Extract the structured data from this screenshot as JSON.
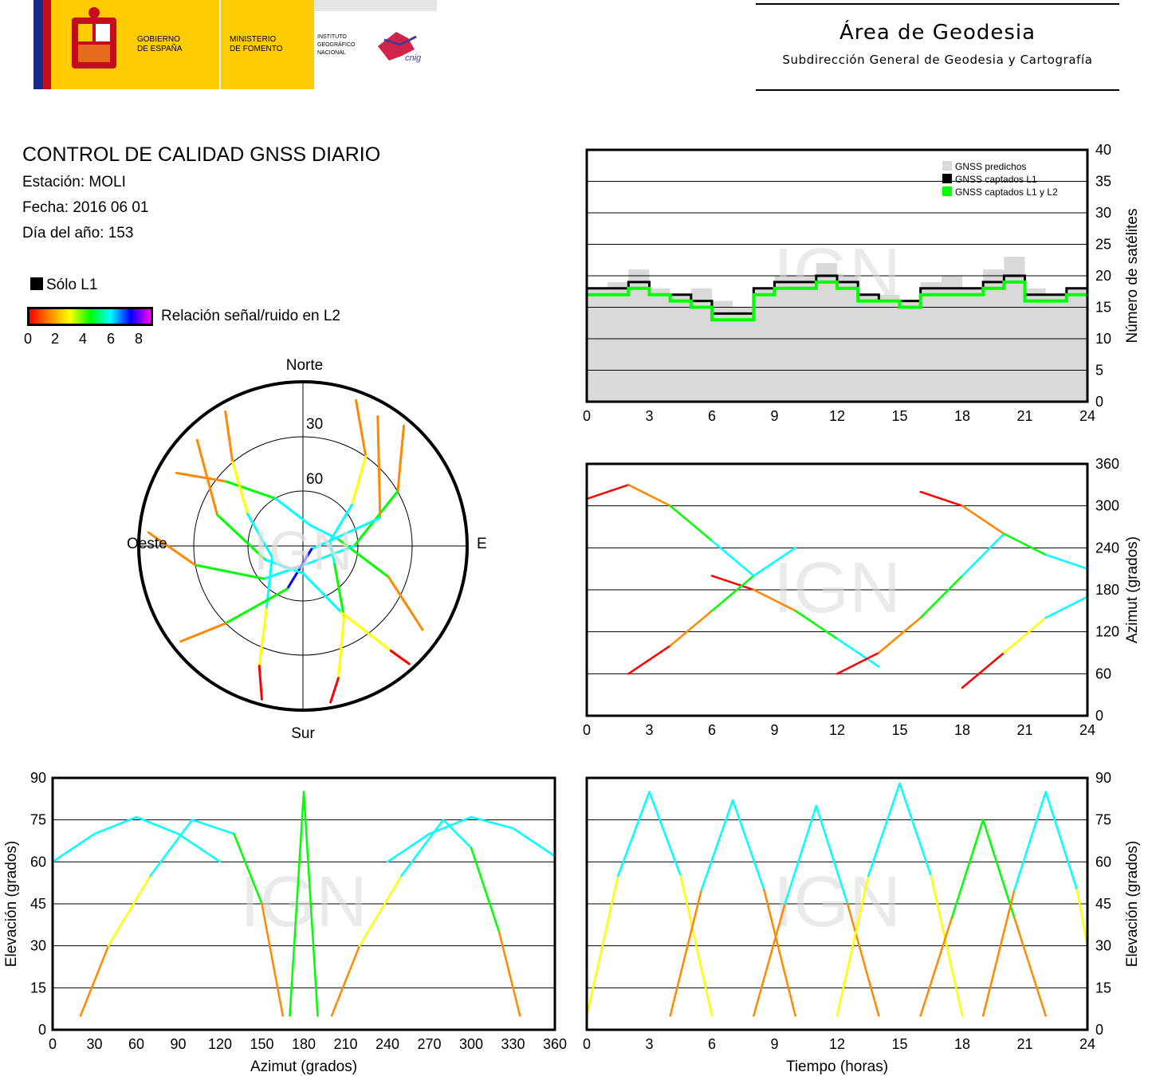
{
  "header": {
    "logo": {
      "gobierno": [
        "GOBIERNO",
        "DE ESPAÑA"
      ],
      "ministerio": [
        "MINISTERIO",
        "DE FOMENTO"
      ],
      "instituto": [
        "INSTITUTO",
        "GEOGRÁFICO",
        "NACIONAL"
      ],
      "cnig": "cnig"
    },
    "area_title": "Área de Geodesia",
    "area_subtitle": "Subdirección General de Geodesia y Cartografía"
  },
  "report": {
    "title": "CONTROL DE CALIDAD GNSS DIARIO",
    "station": "Estación: MOLI",
    "date": "Fecha: 2016 06 01",
    "doy": "Día del año: 153"
  },
  "legend": {
    "l1_only": "Sólo L1",
    "snr_label": "Relación señal/ruido en L2",
    "snr_ticks": [
      "0",
      "2",
      "4",
      "6",
      "8"
    ],
    "snr_colors": [
      "#ff0000",
      "#ff8800",
      "#ffff00",
      "#00ff00",
      "#00ffff",
      "#0000ff",
      "#ff00ff"
    ],
    "l1_color": "#000000"
  },
  "watermark": "IGN",
  "chart_data": [
    {
      "id": "skyplot",
      "type": "scatter",
      "title": "",
      "directions": {
        "north": "Norte",
        "south": "Sur",
        "east": "Este",
        "west": "Oeste"
      },
      "elevation_rings": [
        30,
        60
      ],
      "elevation_ring_labels": [
        "30",
        "60"
      ],
      "series": [
        {
          "values": [
            [
              20,
              5
            ],
            [
              35,
              30
            ],
            [
              50,
              55
            ],
            [
              80,
              75
            ],
            [
              120,
              70
            ],
            [
              150,
              45
            ],
            [
              165,
              15
            ],
            [
              170,
              3
            ]
          ]
        },
        {
          "values": [
            [
              300,
              10
            ],
            [
              310,
              35
            ],
            [
              330,
              60
            ],
            [
              20,
              78
            ],
            [
              80,
              70
            ],
            [
              110,
              40
            ],
            [
              125,
              10
            ]
          ]
        },
        {
          "values": [
            [
              40,
              4
            ],
            [
              60,
              30
            ],
            [
              90,
              62
            ],
            [
              160,
              80
            ],
            [
              230,
              62
            ],
            [
              260,
              30
            ],
            [
              275,
              5
            ]
          ]
        },
        {
          "values": [
            [
              330,
              5
            ],
            [
              320,
              30
            ],
            [
              300,
              55
            ],
            [
              250,
              72
            ],
            [
              210,
              50
            ],
            [
              200,
              20
            ],
            [
              195,
              3
            ]
          ]
        },
        {
          "values": [
            [
              30,
              8
            ],
            [
              70,
              45
            ],
            [
              110,
              85
            ],
            [
              200,
              65
            ],
            [
              225,
              30
            ],
            [
              232,
              5
            ]
          ]
        },
        {
          "values": [
            [
              315,
              8
            ],
            [
              290,
              40
            ],
            [
              250,
              68
            ],
            [
              180,
              75
            ],
            [
              150,
              48
            ],
            [
              140,
              15
            ],
            [
              138,
              3
            ]
          ]
        }
      ]
    },
    {
      "id": "satellite-count",
      "type": "area",
      "xlim": [
        0,
        24
      ],
      "ylim": [
        0,
        40
      ],
      "xticks": [
        "0",
        "3",
        "6",
        "9",
        "12",
        "15",
        "18",
        "21",
        "24"
      ],
      "yticks": [
        "0",
        "5",
        "10",
        "15",
        "20",
        "25",
        "30",
        "35",
        "40"
      ],
      "ylabel": "Número de satélites",
      "legend_position": "top-right",
      "x": [
        0,
        1,
        2,
        3,
        4,
        5,
        6,
        7,
        8,
        9,
        10,
        11,
        12,
        13,
        14,
        15,
        16,
        17,
        18,
        19,
        20,
        21,
        22,
        23,
        24
      ],
      "series": [
        {
          "name": "GNSS predichos",
          "color": "#d9d9d9",
          "values": [
            18,
            19,
            21,
            18,
            17,
            18,
            16,
            15,
            18,
            20,
            20,
            22,
            20,
            17,
            17,
            16,
            19,
            20,
            18,
            21,
            23,
            18,
            17,
            18,
            18
          ]
        },
        {
          "name": "GNSS captados L1",
          "color": "#000000",
          "values": [
            18,
            18,
            19,
            17,
            17,
            16,
            14,
            14,
            18,
            19,
            19,
            20,
            19,
            17,
            16,
            16,
            18,
            18,
            18,
            19,
            20,
            17,
            17,
            18,
            18
          ]
        },
        {
          "name": "GNSS captados L1 y L2",
          "color": "#00ff00",
          "values": [
            17,
            17,
            18,
            17,
            16,
            15,
            13,
            13,
            17,
            18,
            18,
            19,
            18,
            16,
            16,
            15,
            17,
            17,
            17,
            18,
            19,
            16,
            16,
            17,
            17
          ]
        }
      ]
    },
    {
      "id": "azimuth-time",
      "type": "scatter",
      "xlim": [
        0,
        24
      ],
      "ylim": [
        0,
        360
      ],
      "xticks": [
        "0",
        "3",
        "6",
        "9",
        "12",
        "15",
        "18",
        "21",
        "24"
      ],
      "yticks": [
        "0",
        "60",
        "120",
        "180",
        "240",
        "300",
        "360"
      ],
      "ylabel": "Azimut (grados)",
      "series": [
        {
          "x": [
            0,
            2,
            4,
            6,
            8
          ],
          "values": [
            310,
            330,
            300,
            250,
            200
          ]
        },
        {
          "x": [
            6,
            8,
            10,
            12,
            14
          ],
          "values": [
            200,
            180,
            150,
            110,
            70
          ]
        },
        {
          "x": [
            12,
            14,
            16,
            18,
            20
          ],
          "values": [
            60,
            90,
            140,
            200,
            260
          ]
        },
        {
          "x": [
            16,
            18,
            20,
            22,
            24
          ],
          "values": [
            320,
            300,
            260,
            230,
            210
          ]
        },
        {
          "x": [
            2,
            4,
            6,
            8,
            10
          ],
          "values": [
            60,
            100,
            150,
            200,
            240
          ]
        },
        {
          "x": [
            18,
            20,
            22,
            24
          ],
          "values": [
            40,
            90,
            140,
            170
          ]
        }
      ]
    },
    {
      "id": "elevation-azimuth",
      "type": "scatter",
      "xlim": [
        0,
        360
      ],
      "ylim": [
        0,
        90
      ],
      "xticks": [
        "0",
        "30",
        "60",
        "90",
        "120",
        "150",
        "180",
        "210",
        "240",
        "270",
        "300",
        "330",
        "360"
      ],
      "yticks": [
        "0",
        "15",
        "30",
        "45",
        "60",
        "75",
        "90"
      ],
      "xlabel": "Azimut (grados)",
      "ylabel": "Elevación (grados)",
      "series": [
        {
          "x": [
            20,
            40,
            70,
            100,
            130,
            150,
            165
          ],
          "values": [
            5,
            30,
            55,
            75,
            70,
            45,
            5
          ]
        },
        {
          "x": [
            200,
            220,
            250,
            280,
            300,
            320,
            335
          ],
          "values": [
            5,
            30,
            55,
            75,
            65,
            35,
            5
          ]
        },
        {
          "x": [
            0,
            30,
            60,
            90,
            120
          ],
          "values": [
            60,
            70,
            76,
            70,
            60
          ]
        },
        {
          "x": [
            240,
            270,
            300,
            330,
            360
          ],
          "values": [
            60,
            70,
            76,
            72,
            62
          ]
        },
        {
          "x": [
            170,
            180,
            190
          ],
          "values": [
            5,
            85,
            5
          ]
        }
      ]
    },
    {
      "id": "elevation-time",
      "type": "scatter",
      "xlim": [
        0,
        24
      ],
      "ylim": [
        0,
        90
      ],
      "xticks": [
        "0",
        "3",
        "6",
        "9",
        "12",
        "15",
        "18",
        "21",
        "24"
      ],
      "yticks": [
        "0",
        "15",
        "30",
        "45",
        "60",
        "75",
        "90"
      ],
      "xlabel": "Tiempo (horas)",
      "ylabel": "Elevación (grados)",
      "series": [
        {
          "x": [
            0,
            1.5,
            3,
            4.5,
            6
          ],
          "values": [
            5,
            55,
            85,
            55,
            5
          ]
        },
        {
          "x": [
            4,
            5.5,
            7,
            8.5,
            10
          ],
          "values": [
            5,
            50,
            82,
            50,
            5
          ]
        },
        {
          "x": [
            8,
            9.5,
            11,
            12.5,
            14
          ],
          "values": [
            5,
            45,
            80,
            45,
            5
          ]
        },
        {
          "x": [
            12,
            13.5,
            15,
            16.5,
            18
          ],
          "values": [
            5,
            55,
            88,
            55,
            5
          ]
        },
        {
          "x": [
            16,
            17.5,
            19,
            20.5,
            22
          ],
          "values": [
            5,
            40,
            75,
            40,
            5
          ]
        },
        {
          "x": [
            19,
            20.5,
            22,
            23.5,
            24
          ],
          "values": [
            5,
            50,
            85,
            50,
            30
          ]
        }
      ]
    }
  ]
}
